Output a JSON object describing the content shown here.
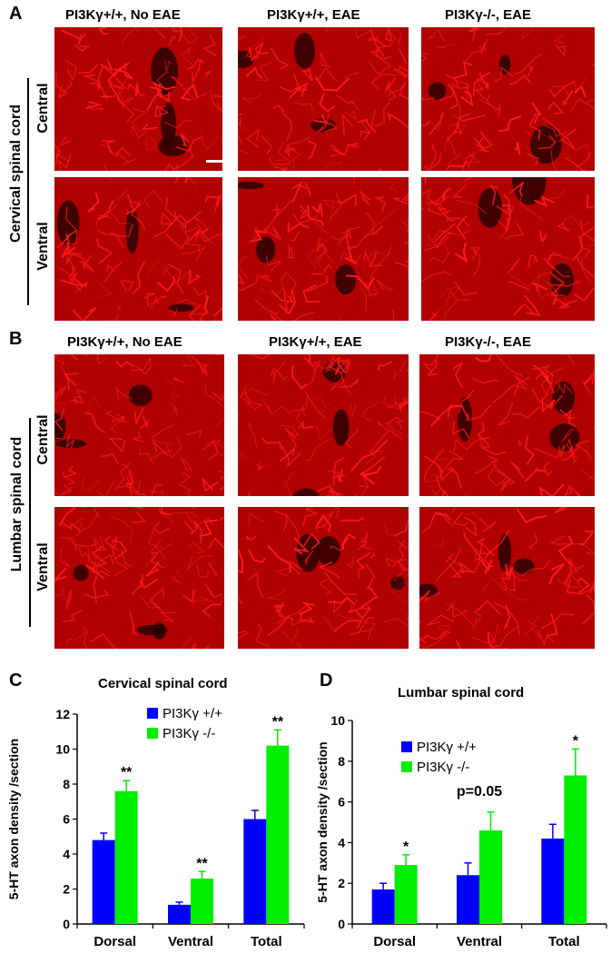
{
  "panel_a": {
    "letter": "A",
    "column_headers": [
      "PI3Kγ+/+,  No EAE",
      "PI3Kγ+/+, EAE",
      "PI3Kγ-/-, EAE"
    ],
    "side_label": "Cervical spinal cord",
    "row_labels": [
      "Central",
      "Ventral"
    ]
  },
  "panel_b": {
    "letter": "B",
    "column_headers": [
      "PI3Kγ+/+,  No EAE",
      "PI3Kγ+/+, EAE",
      "PI3Kγ-/-, EAE"
    ],
    "side_label": "Lumbar spinal cord",
    "row_labels": [
      "Central",
      "Ventral"
    ]
  },
  "colors": {
    "micrograph_bg": "#b00000",
    "fiber": "#ff1a1a",
    "wt_bar": "#0000ff",
    "ko_bar": "#00ee00"
  },
  "chart_data": [
    {
      "letter": "C",
      "type": "bar",
      "title": "Cervical spinal cord",
      "ylabel": "5-HT axon density /section",
      "xlabel": "",
      "categories": [
        "Dorsal",
        "Ventral",
        "Total"
      ],
      "ylim": [
        0,
        12
      ],
      "yticks": [
        0,
        2,
        4,
        6,
        8,
        10,
        12
      ],
      "series": [
        {
          "name": "PI3Kγ +/+",
          "color": "#0000ff",
          "values": [
            4.8,
            1.1,
            6.0
          ],
          "errors": [
            0.4,
            0.15,
            0.5
          ]
        },
        {
          "name": "PI3Kγ -/-",
          "color": "#00ee00",
          "values": [
            7.6,
            2.6,
            10.2
          ],
          "errors": [
            0.6,
            0.4,
            0.9
          ]
        }
      ],
      "annotations": [
        {
          "category": "Dorsal",
          "series": 1,
          "text": "**"
        },
        {
          "category": "Ventral",
          "series": 1,
          "text": "**"
        },
        {
          "category": "Total",
          "series": 1,
          "text": "**"
        }
      ],
      "legend": "top-left",
      "grid": false
    },
    {
      "letter": "D",
      "type": "bar",
      "title": "Lumbar spinal cord",
      "ylabel": "5-HT axon density /section",
      "xlabel": "",
      "categories": [
        "Dorsal",
        "Ventral",
        "Total"
      ],
      "ylim": [
        0,
        10
      ],
      "yticks": [
        0,
        2,
        4,
        6,
        8,
        10
      ],
      "series": [
        {
          "name": "PI3Kγ +/+",
          "color": "#0000ff",
          "values": [
            1.7,
            2.4,
            4.2
          ],
          "errors": [
            0.3,
            0.6,
            0.7
          ]
        },
        {
          "name": "PI3Kγ -/-",
          "color": "#00ee00",
          "values": [
            2.9,
            4.6,
            7.3
          ],
          "errors": [
            0.5,
            0.9,
            1.3
          ]
        }
      ],
      "annotations": [
        {
          "category": "Dorsal",
          "series": 1,
          "text": "*"
        },
        {
          "category": "Ventral",
          "series": 1,
          "text": "p=0.05"
        },
        {
          "category": "Total",
          "series": 1,
          "text": "*"
        }
      ],
      "legend": "top-left",
      "grid": false
    }
  ]
}
